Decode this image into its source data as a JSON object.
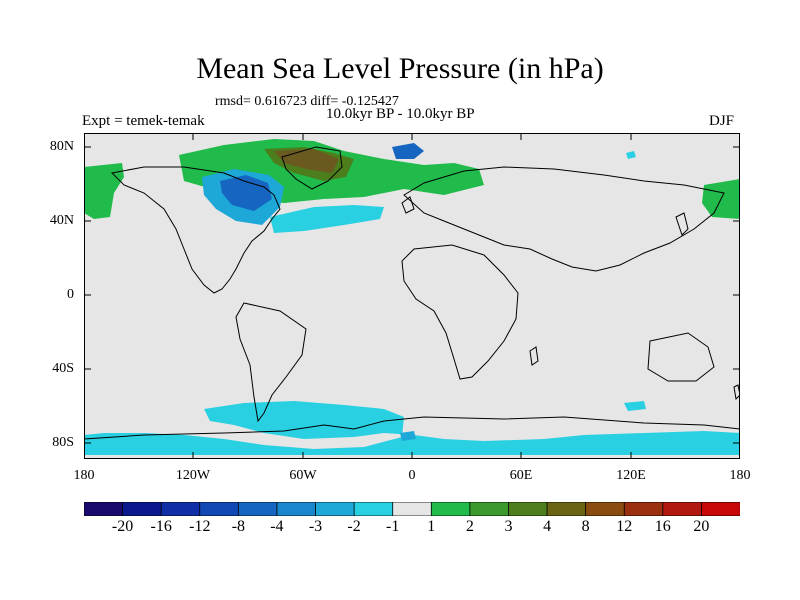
{
  "title": "Mean Sea Level Pressure (in hPa)",
  "stats": "rmsd= 0.616723 diff= -0.125427",
  "left_label": "Expt = temek-temak",
  "center_label": "10.0kyr BP - 10.0kyr BP",
  "right_label": "DJF",
  "lat_ticks": [
    "80N",
    "40N",
    "0",
    "40S",
    "80S"
  ],
  "lon_ticks": [
    "180",
    "120W",
    "60W",
    "0",
    "60E",
    "120E",
    "180"
  ],
  "colorbar": {
    "labels": [
      "-20",
      "-16",
      "-12",
      "-8",
      "-4",
      "-3",
      "-2",
      "-1",
      "1",
      "2",
      "3",
      "4",
      "8",
      "12",
      "16",
      "20"
    ],
    "colors": [
      "#1a0a6e",
      "#0a1a8c",
      "#102ea6",
      "#1248b4",
      "#1665c0",
      "#1a86cc",
      "#1ea8d8",
      "#28d0e2",
      "#e6e6e6",
      "#20bb4a",
      "#3a9a2c",
      "#4c7e1e",
      "#6a6414",
      "#8a4c10",
      "#9a3010",
      "#b01810",
      "#c80808"
    ]
  },
  "colors": {
    "ocean_bg": "#e6e6e6",
    "cyan": "#28d0e2",
    "light_blue": "#1ea8d8",
    "mid_blue": "#1665c0",
    "green": "#20bb4a",
    "olive": "#4c7e1e",
    "brown": "#6a5a20"
  }
}
